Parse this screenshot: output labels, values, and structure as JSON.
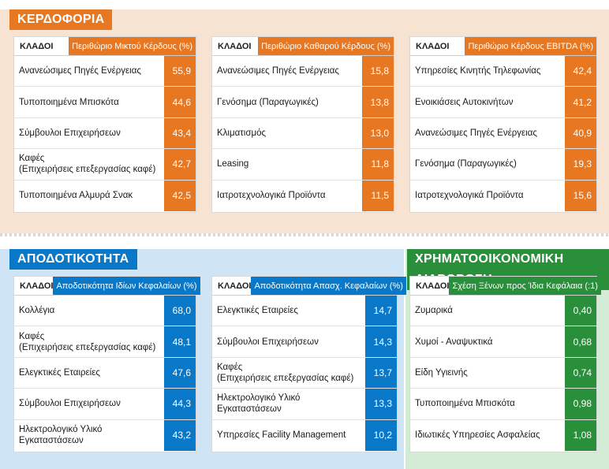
{
  "colors": {
    "profit": "#e87722",
    "returns": "#0a78c8",
    "finance": "#2a8f3a"
  },
  "profitability": {
    "title": "ΚΕΡΔΟΦΟΡΙΑ",
    "tables": [
      {
        "col_label": "ΚΛΑΔΟΙ",
        "metric": "Περιθώριο Μικτού Κέρδους (%)",
        "rows": [
          {
            "name": "Ανανεώσιμες Πηγές Ενέργειας",
            "value": "55,9"
          },
          {
            "name": "Τυποποιημένα Μπισκότα",
            "value": "44,6"
          },
          {
            "name": "Σύμβουλοι Επιχειρήσεων",
            "value": "43,4"
          },
          {
            "name": "Καφές",
            "name2": "(Επιχειρήσεις επεξεργασίας καφέ)",
            "value": "42,7"
          },
          {
            "name": "Τυποποιημένα Αλμυρά Σνακ",
            "value": "42,5"
          }
        ]
      },
      {
        "col_label": "ΚΛΑΔΟΙ",
        "metric": "Περιθώριο Καθαρού Κέρδους (%)",
        "rows": [
          {
            "name": "Ανανεώσιμες Πηγές Ενέργειας",
            "value": "15,8"
          },
          {
            "name": "Γενόσημα (Παραγωγικές)",
            "value": "13,8"
          },
          {
            "name": "Κλιματισμός",
            "value": "13,0"
          },
          {
            "name": "Leasing",
            "value": "11,8"
          },
          {
            "name": "Ιατροτεχνολογικά Προϊόντα",
            "value": "11,5"
          }
        ]
      },
      {
        "col_label": "ΚΛΑΔΟΙ",
        "metric": "Περιθώριο Κέρδους EBITDA (%)",
        "rows": [
          {
            "name": "Υπηρεσίες Κινητής Τηλεφωνίας",
            "value": "42,4"
          },
          {
            "name": "Ενοικιάσεις Αυτοκινήτων",
            "value": "41,2"
          },
          {
            "name": "Ανανεώσιμες Πηγές Ενέργειας",
            "value": "40,9"
          },
          {
            "name": "Γενόσημα (Παραγωγικές)",
            "value": "19,3"
          },
          {
            "name": "Ιατροτεχνολογικά Προϊόντα",
            "value": "15,6"
          }
        ]
      }
    ]
  },
  "returns": {
    "title": "ΑΠΟΔΟΤΙΚΟΤΗΤΑ",
    "tables": [
      {
        "col_label": "ΚΛΑΔΟΙ",
        "metric": "Αποδοτικότητα Ιδίων Κεφαλαίων  (%)",
        "rows": [
          {
            "name": "Κολλέγια",
            "value": "68,0"
          },
          {
            "name": "Καφές",
            "name2": "(Επιχειρήσεις επεξεργασίας καφέ)",
            "value": "48,1"
          },
          {
            "name": "Ελεγκτικές Εταιρείες",
            "value": "47,6"
          },
          {
            "name": "Σύμβουλοι Επιχειρήσεων",
            "value": "44,3"
          },
          {
            "name": "Ηλεκτρολογικό Υλικό Εγκαταστάσεων",
            "value": "43,2"
          }
        ]
      },
      {
        "col_label": "ΚΛΑΔΟΙ",
        "metric": "Αποδοτικότητα Απασχ. Κεφαλαίων  (%)",
        "rows": [
          {
            "name": "Ελεγκτικές Εταιρείες",
            "value": "14,7"
          },
          {
            "name": "Σύμβουλοι Επιχειρήσεων",
            "value": "14,3"
          },
          {
            "name": "Καφές",
            "name2": "(Επιχειρήσεις επεξεργασίας καφέ)",
            "value": "13,7"
          },
          {
            "name": "Ηλεκτρολογικό Υλικό Εγκαταστάσεων",
            "value": "13,3"
          },
          {
            "name": "Υπηρεσίες Facility Management",
            "value": "10,2"
          }
        ]
      }
    ]
  },
  "finance": {
    "title": "ΧΡΗΜΑΤΟΟΙΚΟΝΟΜΙΚΗ ΔΙΑΡΘΡΩΣΗ",
    "tables": [
      {
        "col_label": "ΚΛΑΔΟΙ",
        "metric": "Σχέση Ξένων προς Ίδια Κεφάλαια (:1)",
        "rows": [
          {
            "name": "Ζυμαρικά",
            "value": "0,40"
          },
          {
            "name": "Χυμοί - Αναψυκτικά",
            "value": "0,68"
          },
          {
            "name": "Είδη Υγιεινής",
            "value": "0,74"
          },
          {
            "name": "Τυποποιημένα Μπισκότα",
            "value": "0,98"
          },
          {
            "name": "Ιδιωτικές Υπηρεσίες Ασφαλείας",
            "value": "1,08"
          }
        ]
      }
    ]
  }
}
